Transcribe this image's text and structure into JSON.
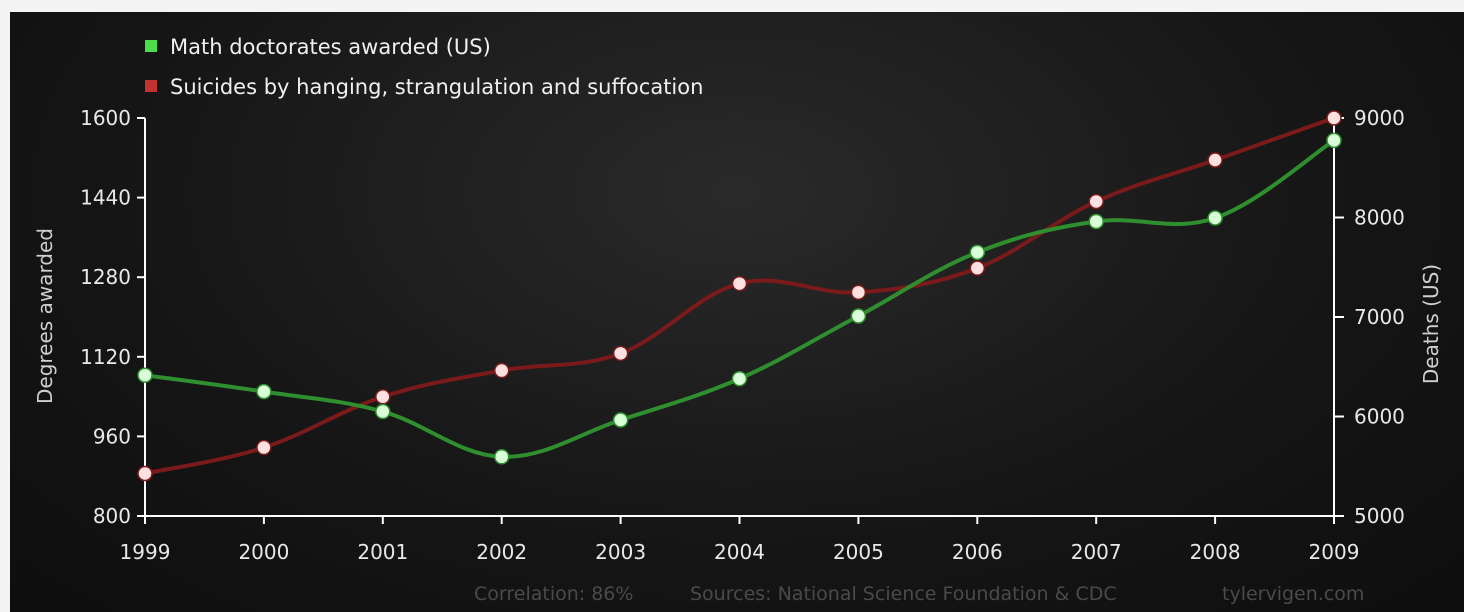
{
  "chart_data": {
    "type": "line",
    "categories": [
      "1999",
      "2000",
      "2001",
      "2002",
      "2003",
      "2004",
      "2005",
      "2006",
      "2007",
      "2008",
      "2009"
    ],
    "series": [
      {
        "name": "Math doctorates awarded (US)",
        "axis": "left",
        "color": "#2f8f2f",
        "marker_color": "#d9ffd9",
        "values": [
          1083,
          1050,
          1010,
          919,
          993,
          1076,
          1202,
          1330,
          1392,
          1399,
          1555
        ]
      },
      {
        "name": "Suicides by hanging, strangulation and suffocation",
        "axis": "right",
        "color": "#7a1a1a",
        "marker_color": "#ffe0e0",
        "values": [
          5427,
          5688,
          6198,
          6462,
          6635,
          7336,
          7248,
          7491,
          8161,
          8578,
          9000
        ]
      }
    ],
    "left_axis": {
      "label": "Degrees awarded",
      "range": [
        800,
        1600
      ],
      "ticks": [
        "800",
        "960",
        "1120",
        "1280",
        "1440",
        "1600"
      ],
      "tick_values": [
        800,
        960,
        1120,
        1280,
        1440,
        1600
      ]
    },
    "right_axis": {
      "label": "Deaths (US)",
      "range": [
        5000,
        9000
      ],
      "ticks": [
        "5000",
        "6000",
        "7000",
        "8000",
        "9000"
      ],
      "tick_values": [
        5000,
        6000,
        7000,
        8000,
        9000
      ]
    },
    "legend_position": "top-left",
    "grid": false
  },
  "footer": {
    "correlation": "Correlation: 86%",
    "sources": "Sources: National Science Foundation & CDC",
    "site": "tylervigen.com"
  },
  "colors": {
    "background": "#151515",
    "axis": "#ffffff",
    "text": "#e8e8e8"
  }
}
